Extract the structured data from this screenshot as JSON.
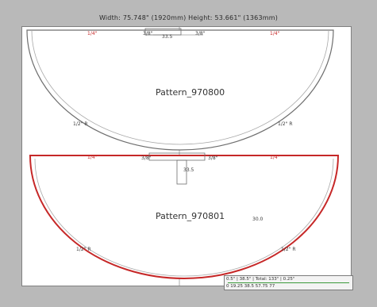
{
  "header": {
    "dimensions_text": "Width: 75.748\" (1920mm)  Height: 53.661\" (1363mm)"
  },
  "patterns": [
    {
      "name": "Pattern_970800",
      "outline_color": "#7f7f7f",
      "top_labels": [
        "1/4\"",
        "3/8\"",
        "3/8\"",
        "1/4\""
      ],
      "side_labels": [
        "1/2\" R",
        "1/2\" R"
      ],
      "center_label": "33.5"
    },
    {
      "name": "Pattern_970801",
      "outline_color": "#d32f2f",
      "top_labels": [
        "1/4\"",
        "3/8\"",
        "3/8\"",
        "1/4\""
      ],
      "side_labels": [
        "1/2\" R",
        "1/2\" R"
      ],
      "tab_label": "33.5",
      "inner_label": "30.0"
    }
  ],
  "legend": {
    "line1": "0.5\"  |  38.5\"  |  Total: 133\"  |  0.25\"",
    "line2": "0      19.25      38.5      57.75      77"
  }
}
